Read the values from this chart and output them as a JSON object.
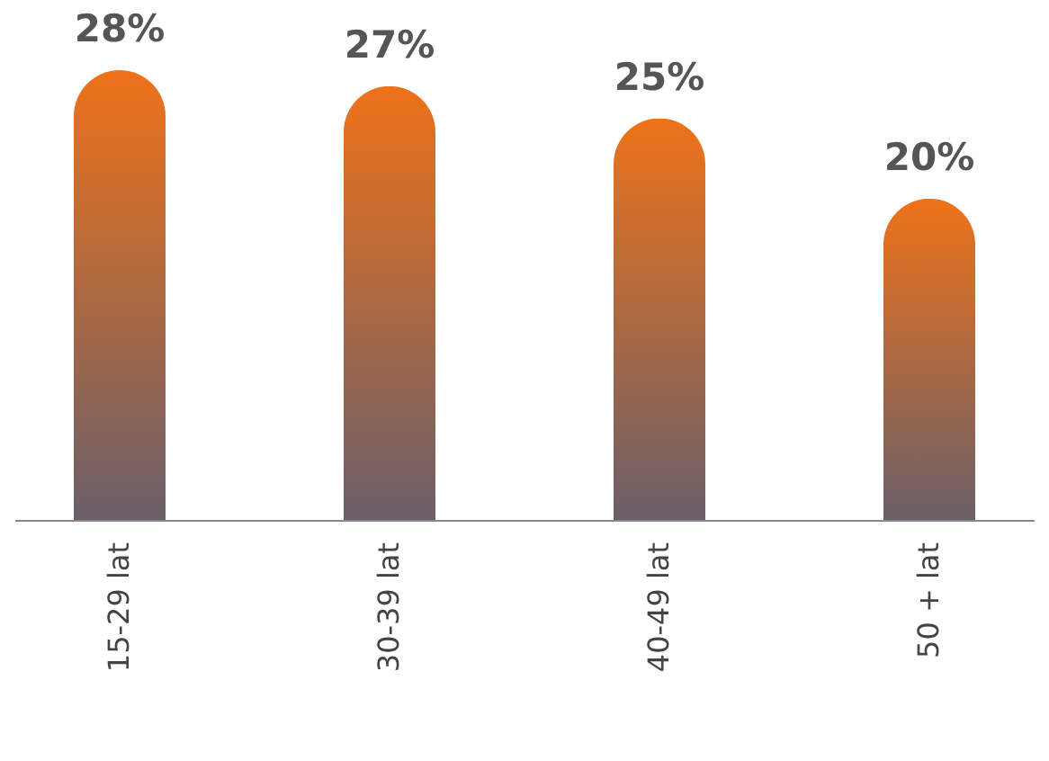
{
  "chart_data": {
    "type": "bar",
    "categories": [
      "15-29 lat",
      "30-39 lat",
      "40-49 lat",
      "50 + lat"
    ],
    "values": [
      28,
      27,
      25,
      20
    ],
    "value_labels": [
      "28%",
      "27%",
      "25%",
      "20%"
    ],
    "color": "#ee7219"
  }
}
